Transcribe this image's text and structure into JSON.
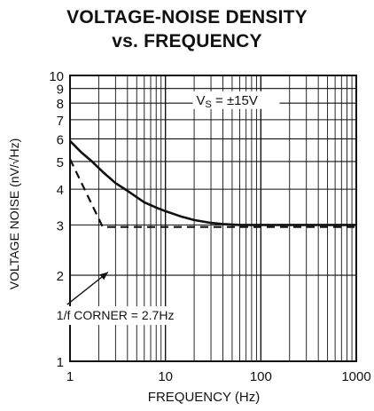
{
  "chart_data": {
    "type": "line",
    "title": [
      "VOLTAGE-NOISE DENSITY",
      "vs. FREQUENCY"
    ],
    "xlabel": "FREQUENCY (Hz)",
    "ylabel": "VOLTAGE NOISE (nV/√Hz)",
    "x_scale": "log",
    "y_scale": "log",
    "xlim": [
      1,
      1000
    ],
    "ylim": [
      1,
      10
    ],
    "x_ticks": [
      "1",
      "10",
      "100",
      "1000"
    ],
    "y_ticks": [
      "1",
      "2",
      "3",
      "4",
      "5",
      "6",
      "7",
      "8",
      "9",
      "10"
    ],
    "grid": true,
    "series": [
      {
        "style": "solid",
        "x": [
          1,
          1.3,
          1.7,
          2.2,
          3,
          4,
          6,
          8,
          10,
          15,
          20,
          30,
          40,
          60,
          100,
          1000
        ],
        "y": [
          5.9,
          5.4,
          5.0,
          4.6,
          4.2,
          3.95,
          3.6,
          3.45,
          3.35,
          3.2,
          3.12,
          3.05,
          3.02,
          3.0,
          3.0,
          3.0
        ]
      },
      {
        "style": "dashed",
        "x": [
          1,
          2.2,
          1000
        ],
        "y": [
          5.1,
          2.95,
          2.95
        ]
      }
    ],
    "annotations": [
      {
        "text_parts": [
          "V",
          "S",
          " = ±15V"
        ],
        "x": 40,
        "y": 8.2
      },
      {
        "text": "1/f CORNER = 2.7Hz",
        "x": 1.7,
        "y": 1.45,
        "arrow_to": [
          2.5,
          2.05
        ]
      }
    ],
    "colors": {
      "ink": "#111111",
      "background": "#ffffff"
    }
  }
}
